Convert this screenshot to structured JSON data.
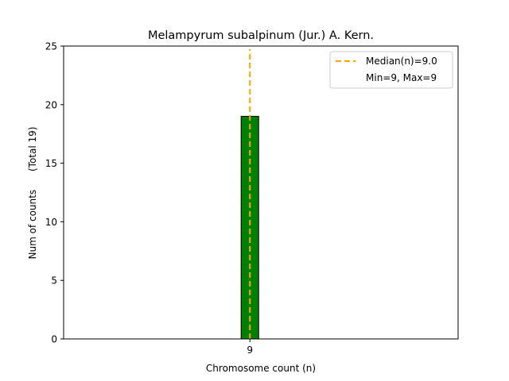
{
  "chart_data": {
    "type": "bar",
    "title": "Melampyrum subalpinum (Jur.) A. Kern.",
    "xlabel": "Chromosome count (n)",
    "ylabel": "Num of counts      (Total 19)",
    "categories": [
      "9"
    ],
    "values": [
      19
    ],
    "x_values": [
      9
    ],
    "xlim": [
      0.5,
      18.5
    ],
    "ylim": [
      0,
      25
    ],
    "yticks": [
      0,
      5,
      10,
      15,
      20,
      25
    ],
    "xticks": [
      9
    ],
    "bar_color": "#008000",
    "bar_edge_color": "#000000",
    "median": {
      "value": 9.0,
      "color": "#FFA500",
      "label": "Median(n)=9.0"
    },
    "minmax_label": "Min=9, Max=9",
    "legend_position": "top-right",
    "grid": false
  }
}
